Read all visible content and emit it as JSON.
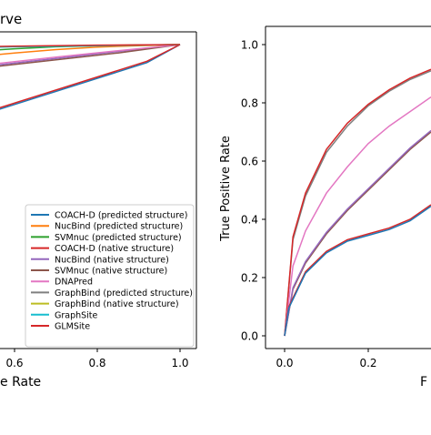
{
  "chart_data": [
    {
      "type": "line",
      "title": "rve",
      "xlabel": "e Rate",
      "ylabel": "",
      "x_ticks": [
        "0.6",
        "0.8",
        "1.0"
      ],
      "x_tick_values": [
        0.6,
        0.8,
        1.0
      ],
      "legend_placement": "lower-right",
      "legend": [
        {
          "name": "COACH-D (predicted structure)",
          "color": "#1f77b4"
        },
        {
          "name": "NucBind (predicted structure)",
          "color": "#ff7f0e"
        },
        {
          "name": "SVMnuc (predicted structure)",
          "color": "#2ca02c"
        },
        {
          "name": "COACH-D (native structure)",
          "color": "#d62728"
        },
        {
          "name": "NucBind (native structure)",
          "color": "#9467bd"
        },
        {
          "name": "SVMnuc (native structure)",
          "color": "#8c564b"
        },
        {
          "name": "DNAPred",
          "color": "#e377c2"
        },
        {
          "name": "GraphBind (predicted structure)",
          "color": "#7f7f7f"
        },
        {
          "name": "GraphBind (native structure)",
          "color": "#bcbd22"
        },
        {
          "name": "GraphSite",
          "color": "#17becf"
        },
        {
          "name": "GLMSite",
          "color": "#d62728"
        }
      ],
      "series": [
        {
          "color": "#1f77b4",
          "x": [
            0.4,
            0.92,
            1.0
          ],
          "y": [
            0.69,
            0.935,
            1.0
          ]
        },
        {
          "color": "#d62728",
          "x": [
            0.4,
            0.92,
            1.0
          ],
          "y": [
            0.695,
            0.94,
            1.0
          ]
        },
        {
          "color": "#2ca02c",
          "x": [
            0.4,
            0.5,
            0.6,
            0.7,
            0.8,
            0.9,
            1.0
          ],
          "y": [
            0.962,
            0.975,
            0.985,
            0.992,
            0.996,
            0.998,
            1.0
          ]
        },
        {
          "color": "#ff7f0e",
          "x": [
            0.4,
            0.5,
            0.6,
            0.7,
            0.8,
            0.9,
            1.0
          ],
          "y": [
            0.935,
            0.955,
            0.97,
            0.982,
            0.991,
            0.996,
            1.0
          ]
        },
        {
          "color": "#9467bd",
          "x": [
            0.4,
            0.55,
            0.7,
            0.85,
            1.0
          ],
          "y": [
            0.9,
            0.925,
            0.95,
            0.975,
            1.0
          ]
        },
        {
          "color": "#8c564b",
          "x": [
            0.4,
            0.55,
            0.7,
            0.85,
            1.0
          ],
          "y": [
            0.895,
            0.92,
            0.945,
            0.97,
            1.0
          ]
        },
        {
          "color": "#e377c2",
          "x": [
            0.4,
            0.55,
            0.7,
            0.85,
            1.0
          ],
          "y": [
            0.905,
            0.93,
            0.955,
            0.978,
            1.0
          ]
        },
        {
          "color": "#bcbd22",
          "x": [
            0.4,
            0.6,
            0.8,
            1.0
          ],
          "y": [
            0.988,
            0.993,
            0.997,
            1.0
          ]
        },
        {
          "color": "#17becf",
          "x": [
            0.4,
            0.6,
            0.8,
            1.0
          ],
          "y": [
            0.986,
            0.992,
            0.996,
            1.0
          ]
        },
        {
          "color": "#d62728",
          "x": [
            0.4,
            0.6,
            0.8,
            1.0
          ],
          "y": [
            0.99,
            0.994,
            0.998,
            1.0
          ]
        }
      ]
    },
    {
      "type": "line",
      "title": "",
      "xlabel": "F",
      "ylabel": "True Positive Rate",
      "x_ticks": [
        "0.0",
        "0.2"
      ],
      "x_tick_values": [
        0.0,
        0.2
      ],
      "y_ticks": [
        "0.0",
        "0.2",
        "0.4",
        "0.6",
        "0.8",
        "1.0"
      ],
      "y_tick_values": [
        0.0,
        0.2,
        0.4,
        0.6,
        0.8,
        1.0
      ],
      "series": [
        {
          "color": "#7f7f7f",
          "x": [
            0,
            0.02,
            0.05,
            0.1,
            0.15,
            0.2,
            0.25,
            0.3,
            0.35
          ],
          "y": [
            0,
            0.33,
            0.48,
            0.63,
            0.72,
            0.79,
            0.84,
            0.88,
            0.91
          ]
        },
        {
          "color": "#d62728",
          "x": [
            0,
            0.02,
            0.05,
            0.1,
            0.15,
            0.2,
            0.25,
            0.3,
            0.35
          ],
          "y": [
            0,
            0.34,
            0.49,
            0.64,
            0.73,
            0.795,
            0.845,
            0.885,
            0.915
          ]
        },
        {
          "color": "#e377c2",
          "x": [
            0,
            0.02,
            0.05,
            0.1,
            0.15,
            0.2,
            0.25,
            0.3,
            0.35
          ],
          "y": [
            0,
            0.24,
            0.36,
            0.49,
            0.58,
            0.66,
            0.72,
            0.77,
            0.82
          ]
        },
        {
          "color": "#8c564b",
          "x": [
            0,
            0.02,
            0.05,
            0.1,
            0.15,
            0.2,
            0.25,
            0.3,
            0.35
          ],
          "y": [
            0,
            0.16,
            0.25,
            0.35,
            0.43,
            0.5,
            0.57,
            0.64,
            0.7
          ]
        },
        {
          "color": "#9467bd",
          "x": [
            0,
            0.02,
            0.05,
            0.1,
            0.15,
            0.2,
            0.25,
            0.3,
            0.35
          ],
          "y": [
            0,
            0.165,
            0.255,
            0.355,
            0.435,
            0.505,
            0.575,
            0.645,
            0.705
          ]
        },
        {
          "color": "#d62728",
          "x": [
            0,
            0.01,
            0.05,
            0.1,
            0.15,
            0.2,
            0.25,
            0.3,
            0.35
          ],
          "y": [
            0,
            0.1,
            0.22,
            0.29,
            0.33,
            0.35,
            0.37,
            0.4,
            0.45
          ]
        },
        {
          "color": "#1f77b4",
          "x": [
            0,
            0.01,
            0.05,
            0.1,
            0.15,
            0.2,
            0.25,
            0.3,
            0.35
          ],
          "y": [
            0,
            0.095,
            0.215,
            0.285,
            0.325,
            0.345,
            0.365,
            0.395,
            0.445
          ]
        }
      ]
    }
  ]
}
